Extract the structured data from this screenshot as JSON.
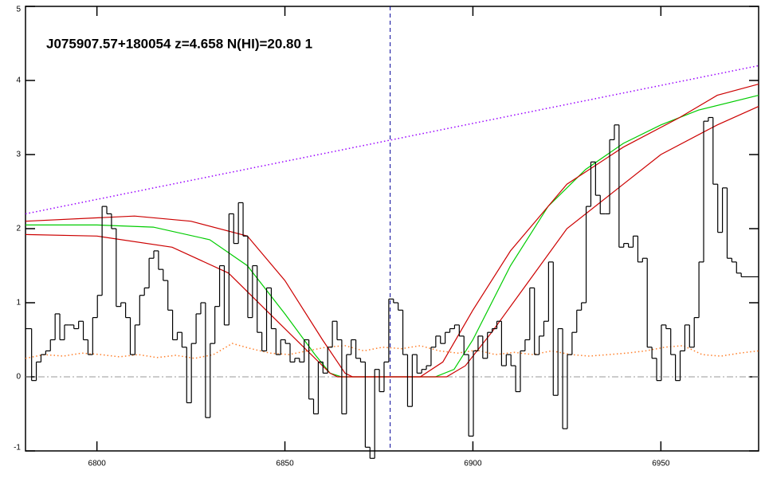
{
  "chart_data": {
    "type": "spectrum",
    "title": "J075907.57+180054 z=4.658 N(HI)=20.80 1",
    "xlim": [
      6781,
      6976
    ],
    "ylim": [
      -1,
      5
    ],
    "xticks": [
      6800,
      6850,
      6900,
      6950
    ],
    "yticks": [
      -1,
      0,
      1,
      2,
      3,
      4,
      5
    ],
    "vline": 6878,
    "hline": 0,
    "flux": {
      "color": "#000000",
      "x": [
        6782,
        6783.25,
        6784.5,
        6785.75,
        6787,
        6788.25,
        6789.5,
        6790.75,
        6792,
        6793.25,
        6794.5,
        6795.75,
        6797,
        6798.25,
        6799.5,
        6800.75,
        6802,
        6803.25,
        6804.5,
        6805.75,
        6807,
        6808.25,
        6809.5,
        6810.75,
        6812,
        6813.25,
        6814.5,
        6815.75,
        6817,
        6818.25,
        6819.5,
        6820.75,
        6822,
        6823.25,
        6824.5,
        6825.75,
        6827,
        6828.25,
        6829.5,
        6830.75,
        6832,
        6833.25,
        6834.5,
        6835.75,
        6837,
        6838.25,
        6839.5,
        6840.75,
        6842,
        6843.25,
        6844.5,
        6845.75,
        6847,
        6848.25,
        6849.5,
        6850.75,
        6852,
        6853.25,
        6854.5,
        6855.75,
        6857,
        6858.25,
        6859.5,
        6860.75,
        6862,
        6863.25,
        6864.5,
        6865.75,
        6867,
        6868.25,
        6869.5,
        6870.75,
        6872,
        6873.25,
        6874.5,
        6875.75,
        6877,
        6878.25,
        6879.5,
        6880.75,
        6882,
        6883.25,
        6884.5,
        6885.75,
        6887,
        6888.25,
        6889.5,
        6890.75,
        6892,
        6893.25,
        6894.5,
        6895.75,
        6897,
        6898.25,
        6899.5,
        6900.75,
        6902,
        6903.25,
        6904.5,
        6905.75,
        6907,
        6908.25,
        6909.5,
        6910.75,
        6912,
        6913.25,
        6914.5,
        6915.75,
        6917,
        6918.25,
        6919.5,
        6920.75,
        6922,
        6923.25,
        6924.5,
        6925.75,
        6927,
        6928.25,
        6929.5,
        6930.75,
        6932,
        6933.25,
        6934.5,
        6935.75,
        6937,
        6938.25,
        6939.5,
        6940.75,
        6942,
        6943.25,
        6944.5,
        6945.75,
        6947,
        6948.25,
        6949.5,
        6950.75,
        6952,
        6953.25,
        6954.5,
        6955.75,
        6957,
        6958.25,
        6959.5,
        6960.75,
        6962,
        6963.25,
        6964.5,
        6965.75,
        6967,
        6968.25,
        6969.5,
        6970.75,
        6972
      ],
      "values": [
        0.65,
        -0.05,
        0.2,
        0.3,
        0.35,
        0.5,
        0.85,
        0.5,
        0.7,
        0.7,
        0.65,
        0.75,
        0.5,
        0.3,
        0.8,
        1.1,
        2.3,
        2.2,
        2.0,
        0.95,
        1.0,
        0.8,
        0.3,
        0.7,
        1.1,
        1.2,
        1.6,
        1.7,
        1.45,
        1.3,
        0.9,
        0.5,
        0.6,
        0.4,
        -0.35,
        0.45,
        0.85,
        1.0,
        -0.55,
        0.45,
        0.95,
        1.5,
        0.7,
        2.2,
        1.8,
        2.35,
        1.9,
        0.8,
        1.5,
        0.6,
        0.35,
        1.2,
        0.65,
        0.3,
        0.5,
        0.45,
        0.2,
        0.25,
        0.2,
        0.5,
        -0.3,
        -0.5,
        0.2,
        0.05,
        0.4,
        0.75,
        0.5,
        -0.5,
        0.3,
        0.5,
        0.25,
        0.2,
        -0.95,
        -1.1,
        0.1,
        -0.2,
        0.2,
        1.05,
        1.0,
        0.9,
        0.3,
        -0.4,
        0.3,
        0.05,
        0.1,
        0.15,
        0.4,
        0.55,
        0.45,
        0.6,
        0.65,
        0.7,
        0.55,
        0.3,
        -0.8,
        0.35,
        0.55,
        0.25,
        0.6,
        0.65,
        0.75,
        0.15,
        0.3,
        0.15,
        -0.2,
        0.35,
        0.5,
        1.2,
        0.3,
        0.55,
        0.75,
        1.55,
        -0.25,
        0.65,
        -0.7,
        0.3,
        0.6,
        0.9,
        1.0,
        2.3,
        2.9,
        2.45,
        2.2,
        2.2,
        3.2,
        3.4,
        1.75,
        1.8,
        1.75,
        1.9,
        1.55,
        1.6,
        0.4,
        0.25,
        -0.05,
        0.7,
        0.65,
        0.3,
        -0.05,
        0.35,
        0.7,
        0.4,
        0.8,
        1.55,
        3.45,
        3.5,
        2.6,
        1.95,
        2.55,
        1.6,
        1.55,
        1.4,
        1.35
      ]
    },
    "series": [
      {
        "color": "#ff7f2a",
        "dash": "dotted",
        "x": [
          6781,
          6786,
          6791,
          6796,
          6801,
          6806,
          6811,
          6816,
          6821,
          6826,
          6831,
          6836,
          6841,
          6846,
          6851,
          6856,
          6861,
          6866,
          6871,
          6876,
          6881,
          6886,
          6891,
          6896,
          6901,
          6906,
          6911,
          6916,
          6921,
          6926,
          6931,
          6936,
          6941,
          6946,
          6951,
          6956,
          6961,
          6966,
          6971,
          6976
        ],
        "values": [
          0.25,
          0.3,
          0.28,
          0.32,
          0.3,
          0.27,
          0.3,
          0.26,
          0.29,
          0.25,
          0.3,
          0.45,
          0.38,
          0.32,
          0.3,
          0.35,
          0.4,
          0.42,
          0.35,
          0.4,
          0.38,
          0.42,
          0.35,
          0.32,
          0.36,
          0.3,
          0.33,
          0.3,
          0.35,
          0.3,
          0.28,
          0.3,
          0.32,
          0.35,
          0.4,
          0.42,
          0.3,
          0.28,
          0.32,
          0.35
        ]
      },
      {
        "color": "#9900ff",
        "dash": "dotted",
        "x": [
          6781,
          6976
        ],
        "values": [
          2.2,
          4.2
        ]
      },
      {
        "color": "#00cc00",
        "x": [
          6781,
          6800,
          6815,
          6830,
          6840,
          6850,
          6858,
          6862,
          6865,
          6890,
          6895,
          6900,
          6905,
          6910,
          6920,
          6930,
          6940,
          6950,
          6960,
          6976
        ],
        "values": [
          2.05,
          2.05,
          2.02,
          1.85,
          1.5,
          0.85,
          0.3,
          0.05,
          0,
          0,
          0.1,
          0.5,
          1.0,
          1.5,
          2.3,
          2.8,
          3.15,
          3.4,
          3.6,
          3.8
        ]
      },
      {
        "color": "#cc0000",
        "x": [
          6781,
          6810,
          6825,
          6840,
          6850,
          6860,
          6866,
          6868,
          6886,
          6892,
          6900,
          6910,
          6925,
          6940,
          6955,
          6965,
          6976
        ],
        "values": [
          2.1,
          2.17,
          2.1,
          1.9,
          1.3,
          0.5,
          0.05,
          0,
          0,
          0.2,
          0.9,
          1.7,
          2.6,
          3.1,
          3.5,
          3.8,
          3.95
        ]
      },
      {
        "color": "#cc0000",
        "x": [
          6781,
          6800,
          6820,
          6835,
          6845,
          6855,
          6862,
          6864,
          6893,
          6898,
          6905,
          6915,
          6925,
          6940,
          6950,
          6965,
          6976
        ],
        "values": [
          1.92,
          1.9,
          1.75,
          1.4,
          0.9,
          0.4,
          0.05,
          0,
          0,
          0.15,
          0.6,
          1.3,
          2.0,
          2.6,
          3.0,
          3.4,
          3.65
        ]
      }
    ]
  }
}
